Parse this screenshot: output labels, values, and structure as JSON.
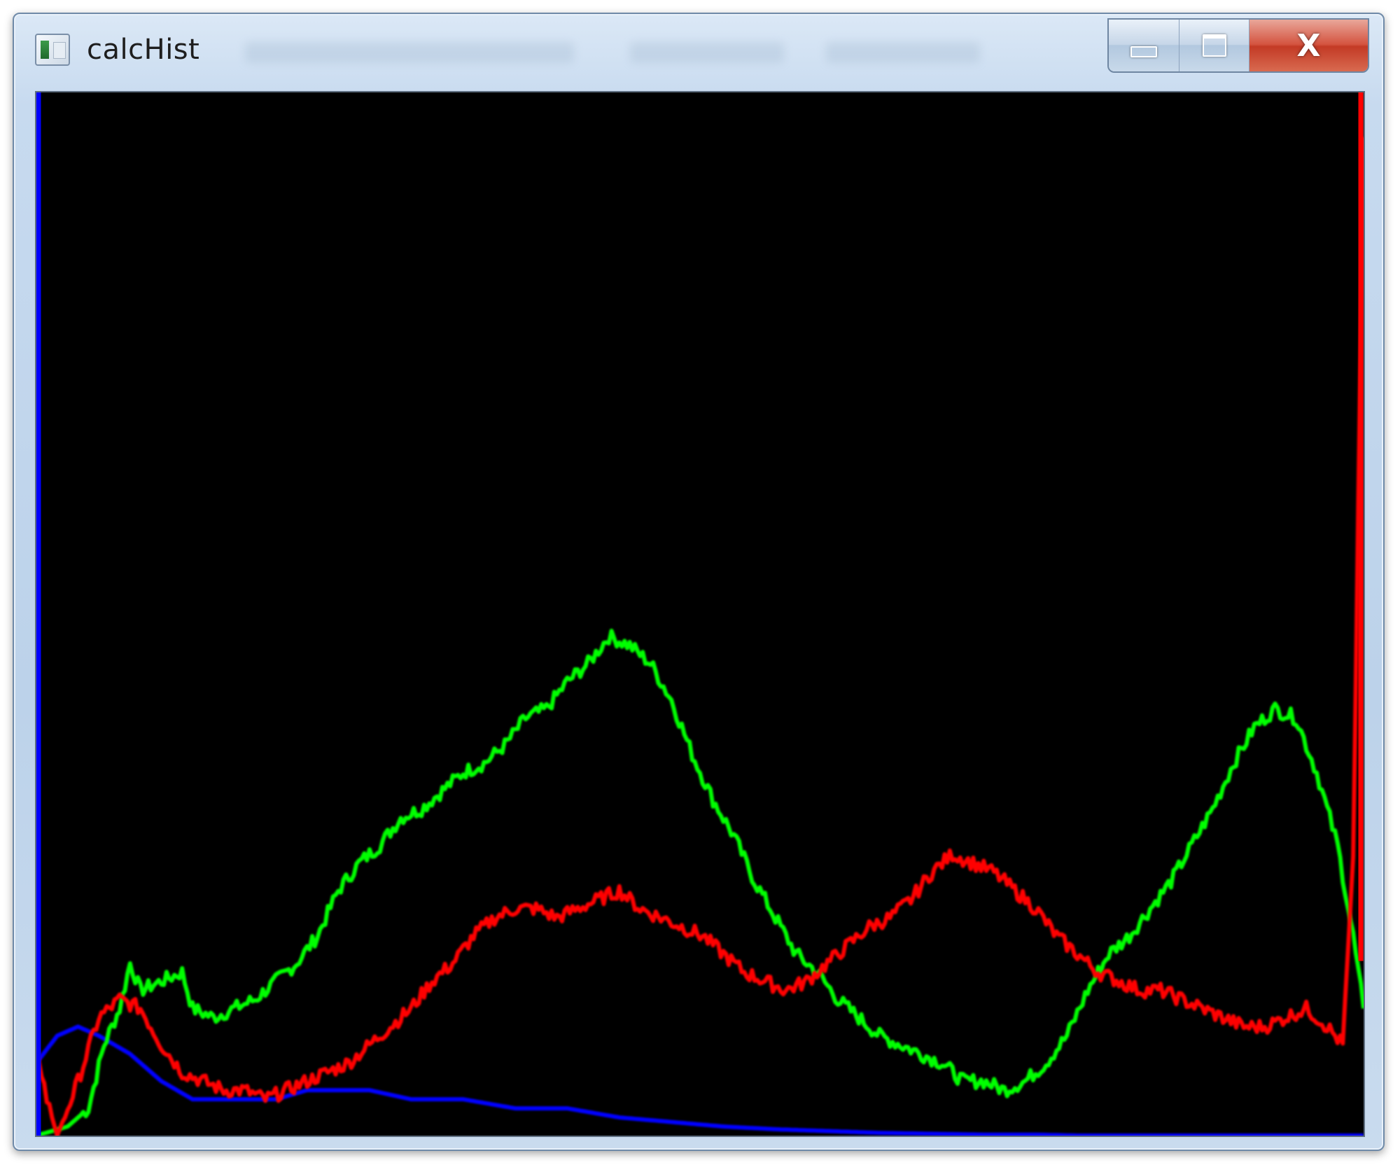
{
  "window": {
    "title": "calcHist",
    "close_label": "X"
  },
  "colors": {
    "background": "#000000",
    "blue_channel": "#0000ff",
    "green_channel": "#00ff00",
    "red_channel": "#ff0000",
    "titlebar": "#c7daef",
    "close_button": "#c33a25"
  },
  "icons": {
    "app": "app-icon",
    "minimize": "minimize-icon",
    "maximize": "maximize-icon",
    "close": "close-icon"
  },
  "histogram": {
    "bins": 256,
    "channels": [
      {
        "color": "#0000ff",
        "points": [
          [
            0,
            8
          ],
          [
            4,
            11
          ],
          [
            8,
            12
          ],
          [
            12,
            11
          ],
          [
            18,
            9
          ],
          [
            24,
            6
          ],
          [
            30,
            4
          ],
          [
            34,
            4
          ],
          [
            40,
            4
          ],
          [
            46,
            4
          ],
          [
            52,
            5
          ],
          [
            58,
            5
          ],
          [
            64,
            5
          ],
          [
            72,
            4
          ],
          [
            82,
            4
          ],
          [
            92,
            3
          ],
          [
            102,
            3
          ],
          [
            112,
            2
          ],
          [
            122,
            1.5
          ],
          [
            132,
            1
          ],
          [
            142,
            0.7
          ],
          [
            152,
            0.5
          ],
          [
            162,
            0.3
          ],
          [
            172,
            0.2
          ],
          [
            182,
            0.1
          ],
          [
            192,
            0.1
          ],
          [
            200,
            0
          ],
          [
            255,
            0
          ]
        ]
      },
      {
        "color": "#00ff00",
        "points": [
          [
            0,
            0
          ],
          [
            6,
            1
          ],
          [
            10,
            3
          ],
          [
            13,
            10
          ],
          [
            16,
            14
          ],
          [
            18,
            19
          ],
          [
            20,
            16
          ],
          [
            24,
            17
          ],
          [
            28,
            18
          ],
          [
            30,
            14
          ],
          [
            34,
            13
          ],
          [
            38,
            14
          ],
          [
            42,
            15
          ],
          [
            46,
            17
          ],
          [
            50,
            19
          ],
          [
            54,
            22
          ],
          [
            58,
            27
          ],
          [
            62,
            30
          ],
          [
            66,
            32
          ],
          [
            70,
            35
          ],
          [
            74,
            36
          ],
          [
            78,
            38
          ],
          [
            82,
            40
          ],
          [
            86,
            41
          ],
          [
            90,
            43
          ],
          [
            94,
            46
          ],
          [
            98,
            47
          ],
          [
            102,
            50
          ],
          [
            106,
            52
          ],
          [
            110,
            55
          ],
          [
            114,
            54
          ],
          [
            118,
            52
          ],
          [
            122,
            48
          ],
          [
            126,
            42
          ],
          [
            130,
            37
          ],
          [
            134,
            33
          ],
          [
            138,
            28
          ],
          [
            142,
            24
          ],
          [
            146,
            20
          ],
          [
            150,
            18
          ],
          [
            154,
            15
          ],
          [
            158,
            13
          ],
          [
            162,
            11
          ],
          [
            166,
            10
          ],
          [
            170,
            9
          ],
          [
            174,
            8
          ],
          [
            178,
            6
          ],
          [
            182,
            6
          ],
          [
            186,
            5
          ],
          [
            190,
            6
          ],
          [
            194,
            8
          ],
          [
            198,
            11
          ],
          [
            202,
            16
          ],
          [
            206,
            20
          ],
          [
            210,
            22
          ],
          [
            214,
            25
          ],
          [
            218,
            28
          ],
          [
            222,
            32
          ],
          [
            226,
            36
          ],
          [
            230,
            41
          ],
          [
            234,
            45
          ],
          [
            238,
            47
          ],
          [
            242,
            46
          ],
          [
            246,
            40
          ],
          [
            250,
            32
          ],
          [
            253,
            22
          ],
          [
            255,
            14
          ]
        ]
      },
      {
        "color": "#ff0000",
        "points": [
          [
            0,
            10
          ],
          [
            2,
            4
          ],
          [
            4,
            0
          ],
          [
            8,
            6
          ],
          [
            12,
            13
          ],
          [
            16,
            15
          ],
          [
            20,
            14
          ],
          [
            24,
            10
          ],
          [
            28,
            7
          ],
          [
            32,
            6
          ],
          [
            36,
            5
          ],
          [
            40,
            5
          ],
          [
            44,
            4
          ],
          [
            48,
            5
          ],
          [
            52,
            6
          ],
          [
            56,
            7
          ],
          [
            60,
            8
          ],
          [
            64,
            10
          ],
          [
            68,
            12
          ],
          [
            72,
            14
          ],
          [
            76,
            17
          ],
          [
            80,
            19
          ],
          [
            84,
            22
          ],
          [
            88,
            24
          ],
          [
            92,
            25
          ],
          [
            96,
            25
          ],
          [
            100,
            24
          ],
          [
            104,
            25
          ],
          [
            108,
            26
          ],
          [
            112,
            27
          ],
          [
            116,
            25
          ],
          [
            120,
            24
          ],
          [
            124,
            23
          ],
          [
            128,
            22
          ],
          [
            132,
            20
          ],
          [
            136,
            18
          ],
          [
            140,
            17
          ],
          [
            144,
            16
          ],
          [
            148,
            17
          ],
          [
            152,
            19
          ],
          [
            156,
            21
          ],
          [
            160,
            23
          ],
          [
            164,
            24
          ],
          [
            168,
            26
          ],
          [
            172,
            29
          ],
          [
            176,
            31
          ],
          [
            180,
            30
          ],
          [
            184,
            29
          ],
          [
            188,
            27
          ],
          [
            192,
            25
          ],
          [
            196,
            22
          ],
          [
            200,
            20
          ],
          [
            204,
            18
          ],
          [
            208,
            17
          ],
          [
            212,
            16
          ],
          [
            216,
            16
          ],
          [
            220,
            15
          ],
          [
            224,
            14
          ],
          [
            228,
            13
          ],
          [
            232,
            12
          ],
          [
            236,
            12
          ],
          [
            240,
            13
          ],
          [
            244,
            14
          ],
          [
            248,
            12
          ],
          [
            251,
            10
          ],
          [
            253,
            30
          ],
          [
            254,
            70
          ],
          [
            255,
            110
          ]
        ]
      }
    ]
  }
}
